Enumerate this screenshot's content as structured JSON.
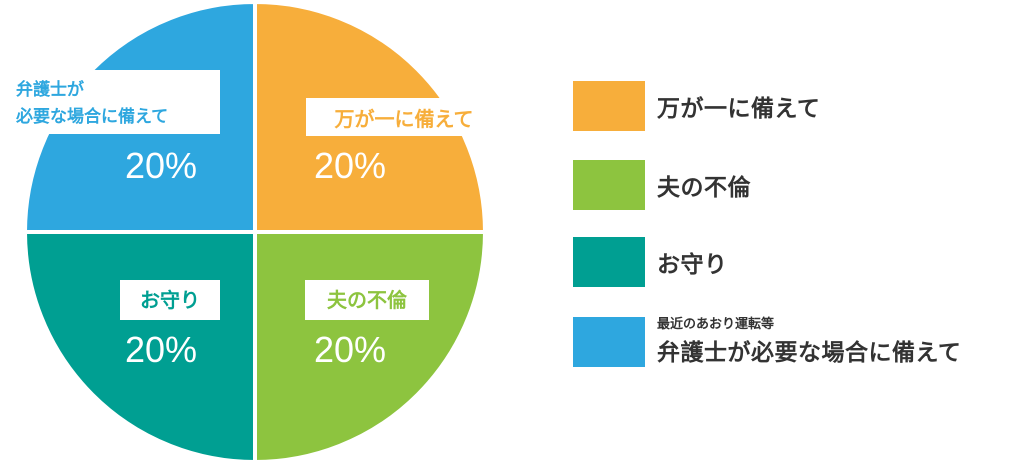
{
  "chart_data": {
    "type": "pie",
    "slices": [
      {
        "label": "万が一に備えて",
        "value": 20,
        "value_label": "20%",
        "color": "#F7AE3B"
      },
      {
        "label": "夫の不倫",
        "value": 20,
        "value_label": "20%",
        "color": "#8DC43F"
      },
      {
        "label": "お守り",
        "value": 20,
        "value_label": "20%",
        "color": "#009F92"
      },
      {
        "label_lines": [
          "弁護士が",
          "必要な場合に備えて"
        ],
        "value": 20,
        "value_label": "20%",
        "color": "#2EA7DF"
      }
    ],
    "legend": {
      "placement": "right",
      "items": [
        {
          "label": "万が一に備えて",
          "color": "#F7AE3B"
        },
        {
          "label": "夫の不倫",
          "color": "#8DC43F"
        },
        {
          "label": "お守り",
          "color": "#009F92"
        },
        {
          "prefix": "最近のあおり運転等",
          "label": "弁護士が必要な場合に備えて",
          "color": "#2EA7DF"
        }
      ]
    }
  }
}
